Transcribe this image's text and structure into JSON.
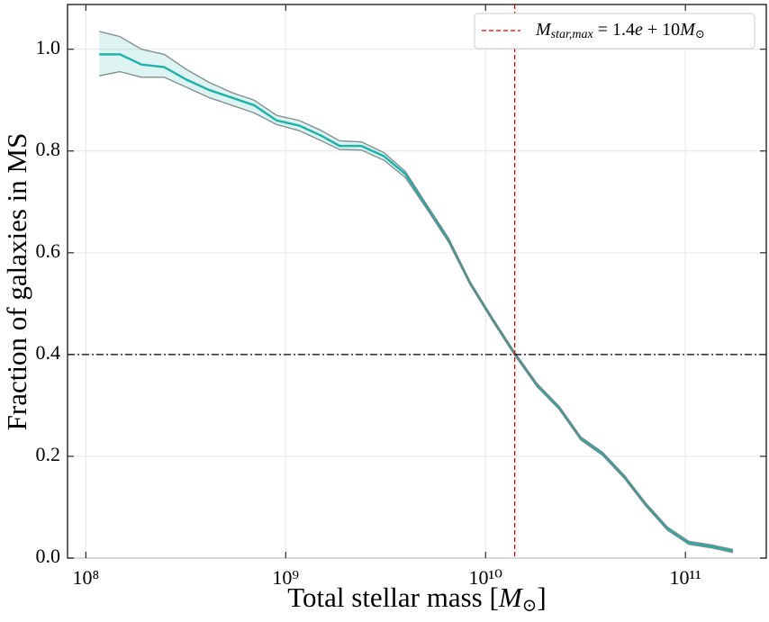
{
  "chart_data": {
    "type": "line",
    "x_label": [
      "Total stellar mass [",
      "M",
      "⊙",
      "]"
    ],
    "y_label": "Fraction of galaxies in MS",
    "x": [
      116800000.0,
      148000000.0,
      190000000.0,
      247000000.0,
      320000000.0,
      414000000.0,
      537000000.0,
      695000000.0,
      902000000.0,
      1170000000.0,
      1510000000.0,
      1860000000.0,
      2390000000.0,
      3100000000.0,
      3970000000.0,
      5090000000.0,
      6530000000.0,
      8380000000.0,
      10800000000.0,
      13800000000.0,
      18100000000.0,
      23400000000.0,
      30000000000.0,
      38500000000.0,
      49400000000.0,
      63400000000.0,
      81300000000.0,
      104000000000.0,
      135000000000.0,
      173000000000.0
    ],
    "series": [
      {
        "color": "#20b2aa",
        "values": [
          0.99,
          0.99,
          0.97,
          0.965,
          0.94,
          0.92,
          0.905,
          0.89,
          0.86,
          0.85,
          0.83,
          0.81,
          0.81,
          0.79,
          0.755,
          0.69,
          0.625,
          0.54,
          0.47,
          0.405,
          0.34,
          0.295,
          0.235,
          0.205,
          0.16,
          0.105,
          0.058,
          0.03,
          0.023,
          0.014
        ]
      }
    ],
    "band": {
      "color": "#20b2aa",
      "edge_color": "#6f7f7f",
      "upper": [
        1.035,
        1.025,
        1.0,
        0.99,
        0.96,
        0.935,
        0.915,
        0.9,
        0.87,
        0.86,
        0.84,
        0.82,
        0.818,
        0.797,
        0.76,
        0.694,
        0.629,
        0.543,
        0.473,
        0.408,
        0.343,
        0.298,
        0.238,
        0.208,
        0.163,
        0.108,
        0.061,
        0.033,
        0.026,
        0.017
      ],
      "lower": [
        0.948,
        0.956,
        0.945,
        0.945,
        0.925,
        0.905,
        0.89,
        0.875,
        0.852,
        0.84,
        0.82,
        0.803,
        0.802,
        0.782,
        0.748,
        0.686,
        0.621,
        0.537,
        0.467,
        0.402,
        0.337,
        0.292,
        0.232,
        0.202,
        0.157,
        0.102,
        0.055,
        0.027,
        0.02,
        0.011
      ]
    },
    "vline": {
      "value": 14000000000.0,
      "color": "#e00000",
      "label": [
        "M",
        "star,max",
        " = 1.4",
        "e",
        " + 10",
        "M",
        "⊙"
      ]
    },
    "hline": {
      "value": 0.4,
      "color": "#000000"
    },
    "xscale": "log",
    "xlim": [
      81000000.0,
      254000000000.0
    ],
    "xticks": [
      {
        "value": 100000000.0,
        "label": "10⁸"
      },
      {
        "value": 1000000000.0,
        "label": "10⁹"
      },
      {
        "value": 10000000000.0,
        "label": "10¹⁰"
      },
      {
        "value": 100000000000.0,
        "label": "10¹¹"
      }
    ],
    "ylim": [
      0,
      1.088
    ],
    "yticks": [
      {
        "value": 0,
        "label": "0.0"
      },
      0.2,
      0.4,
      0.6,
      0.8,
      {
        "value": 1,
        "label": "1.0"
      }
    ],
    "grid": true,
    "legend": "upper right"
  }
}
